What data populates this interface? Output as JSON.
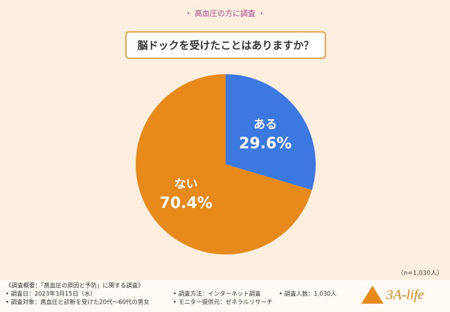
{
  "chart_data": {
    "type": "pie",
    "subtitle": "・ 高血圧の方に調査 ・",
    "title": "脳ドックを受けたことはありますか？",
    "categories": [
      "ある",
      "ない"
    ],
    "values": [
      29.6,
      70.4
    ],
    "value_labels": [
      "29.6%",
      "70.4%"
    ],
    "colors": [
      "#3b78e0",
      "#e8891c"
    ],
    "note": "（n=1,030人）",
    "footer_title": "《調査概要：「高血圧の原因と予防」に関する調査》",
    "footer_notes": [
      "• 調査日：2023年3月15日（水）",
      "• 調査対象：高血圧と診断を受けた20代～60代の男女",
      "• 調査方法：インターネット調査",
      "• モニター提供元：ゼネラルリサーチ",
      "• 調査人数：1,030人"
    ],
    "logo": "3A-life"
  }
}
